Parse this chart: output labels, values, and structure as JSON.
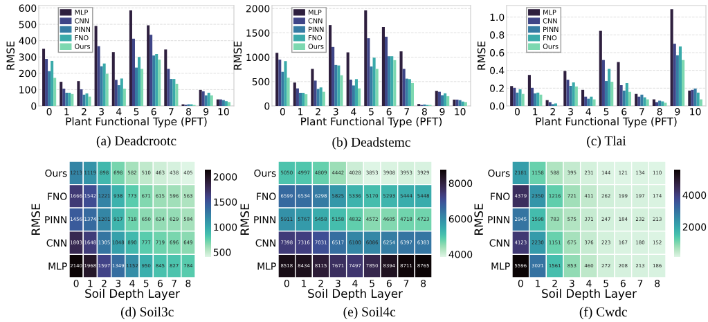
{
  "chart_data": [
    {
      "type": "bar",
      "title": "(a) Deadcrootc",
      "xlabel": "Plant Functional Type (PFT)",
      "ylabel": "RMSE",
      "categories": [
        "0",
        "1",
        "2",
        "3",
        "4",
        "5",
        "6",
        "7",
        "8",
        "9",
        "10"
      ],
      "ylim": [
        0,
        615
      ],
      "yticks": [
        0,
        100,
        200,
        300,
        400,
        500,
        600
      ],
      "grid": "y",
      "legend": "top left",
      "series": [
        {
          "name": "MLP",
          "color": "#2e1f3e",
          "values": [
            350,
            148,
            152,
            490,
            330,
            585,
            494,
            346,
            10,
            98,
            40
          ]
        },
        {
          "name": "CNN",
          "color": "#3f4587",
          "values": [
            288,
            106,
            102,
            366,
            160,
            412,
            436,
            227,
            7,
            90,
            40
          ]
        },
        {
          "name": "PINN",
          "color": "#367ba3",
          "values": [
            213,
            81,
            69,
            243,
            127,
            235,
            309,
            165,
            10,
            65,
            36
          ]
        },
        {
          "name": "FNO",
          "color": "#3aaaaa",
          "values": [
            276,
            81,
            77,
            260,
            168,
            300,
            318,
            165,
            10,
            81,
            29
          ]
        },
        {
          "name": "Ours",
          "color": "#7dd8b0",
          "values": [
            172,
            73,
            57,
            197,
            106,
            227,
            284,
            136,
            6,
            65,
            24
          ]
        }
      ]
    },
    {
      "type": "bar",
      "title": "(b) Deadstemc",
      "xlabel": "Plant Functional Type (PFT)",
      "ylabel": "RMSE",
      "categories": [
        "0",
        "1",
        "2",
        "3",
        "4",
        "5",
        "6",
        "7",
        "8",
        "9",
        "10"
      ],
      "ylim": [
        0,
        2060
      ],
      "yticks": [
        0,
        500,
        1000,
        1500,
        2000
      ],
      "grid": "y",
      "legend": "top left",
      "series": [
        {
          "name": "MLP",
          "color": "#2e1f3e",
          "values": [
            1090,
            480,
            760,
            1660,
            1100,
            1960,
            1620,
            1120,
            40,
            310,
            130
          ]
        },
        {
          "name": "CNN",
          "color": "#3f4587",
          "values": [
            950,
            360,
            520,
            1210,
            540,
            1390,
            1420,
            760,
            20,
            290,
            130
          ]
        },
        {
          "name": "PINN",
          "color": "#367ba3",
          "values": [
            700,
            270,
            350,
            840,
            420,
            810,
            1020,
            560,
            30,
            220,
            120
          ]
        },
        {
          "name": "FNO",
          "color": "#3aaaaa",
          "values": [
            920,
            270,
            380,
            830,
            550,
            990,
            1020,
            550,
            20,
            260,
            90
          ]
        },
        {
          "name": "Ours",
          "color": "#7dd8b0",
          "values": [
            580,
            240,
            290,
            630,
            360,
            760,
            940,
            470,
            20,
            200,
            80
          ]
        }
      ]
    },
    {
      "type": "bar",
      "title": "(c) Tlai",
      "xlabel": "Plant Functional Type (PFT)",
      "ylabel": "RMSE",
      "categories": [
        "0",
        "1",
        "2",
        "3",
        "4",
        "5",
        "6",
        "7",
        "8",
        "9",
        "10"
      ],
      "ylim": [
        0,
        1.13
      ],
      "yticks": [
        {
          "value": 0,
          "label": "0.0"
        },
        0.2,
        0.4,
        0.6,
        0.8,
        {
          "value": 1,
          "label": "1.0"
        }
      ],
      "grid": "y",
      "legend": "top left",
      "series": [
        {
          "name": "MLP",
          "color": "#2e1f3e",
          "values": [
            0.224,
            0.349,
            0.066,
            0.394,
            0.181,
            0.845,
            0.494,
            0.135,
            0.074,
            1.089,
            0.173
          ]
        },
        {
          "name": "CNN",
          "color": "#3f4587",
          "values": [
            0.204,
            0.204,
            0.043,
            0.295,
            0.104,
            0.517,
            0.234,
            0.104,
            0.043,
            0.7,
            0.181
          ]
        },
        {
          "name": "PINN",
          "color": "#367ba3",
          "values": [
            0.15,
            0.142,
            0.02,
            0.226,
            0.081,
            0.28,
            0.173,
            0.127,
            0.059,
            0.57,
            0.196
          ]
        },
        {
          "name": "FNO",
          "color": "#3aaaaa",
          "values": [
            0.188,
            0.15,
            0.028,
            0.265,
            0.104,
            0.417,
            0.257,
            0.097,
            0.051,
            0.669,
            0.15
          ]
        },
        {
          "name": "Ours",
          "color": "#7dd8b0",
          "values": [
            0.135,
            0.127,
            null,
            0.219,
            0.074,
            0.272,
            0.158,
            0.074,
            0.036,
            0.517,
            0.074
          ]
        }
      ]
    },
    {
      "type": "heatmap",
      "title": "(d) Soil3c",
      "xlabel": "Soil Depth Layer",
      "ylabel": "RMSE",
      "categories": [
        "0",
        "1",
        "2",
        "3",
        "4",
        "5",
        "6",
        "7",
        "8"
      ],
      "y_categories": [
        "Ours",
        "FNO",
        "PINN",
        "CNN",
        "MLP"
      ],
      "clim": [
        405,
        2140
      ],
      "cticks": [
        500,
        1000,
        1500,
        2000
      ],
      "data_labels": true,
      "cells": [
        [
          1213,
          1119,
          898,
          698,
          582,
          510,
          463,
          438,
          405
        ],
        [
          1666,
          1542,
          1221,
          938,
          773,
          671,
          615,
          596,
          563
        ],
        [
          1456,
          1374,
          1201,
          917,
          718,
          650,
          634,
          629,
          584
        ],
        [
          1803,
          1648,
          1305,
          1048,
          890,
          777,
          719,
          696,
          649
        ],
        [
          2140,
          1968,
          1597,
          1349,
          1152,
          950,
          845,
          827,
          784
        ]
      ]
    },
    {
      "type": "heatmap",
      "title": "(e) Soil4c",
      "xlabel": "Soil Depth Layer",
      "ylabel": "RMSE",
      "categories": [
        "0",
        "1",
        "2",
        "3",
        "4",
        "5",
        "6",
        "7",
        "8"
      ],
      "y_categories": [
        "Ours",
        "FNO",
        "PINN",
        "CNN",
        "MLP"
      ],
      "clim": [
        3853,
        8765
      ],
      "cticks": [
        4000,
        6000,
        8000
      ],
      "data_labels": true,
      "cells": [
        [
          5050,
          4997,
          4809,
          4442,
          4028,
          3853,
          3908,
          3953,
          3929
        ],
        [
          6599,
          6534,
          6298,
          5825,
          5336,
          5170,
          5293,
          5444,
          5448
        ],
        [
          5911,
          5767,
          5458,
          5158,
          4832,
          4572,
          4605,
          4718,
          4723
        ],
        [
          7398,
          7316,
          7031,
          6517,
          6100,
          6086,
          6254,
          6397,
          6383
        ],
        [
          8518,
          8434,
          8115,
          7671,
          7497,
          7850,
          8394,
          8711,
          8765
        ]
      ]
    },
    {
      "type": "heatmap",
      "title": "(f) Cwdc",
      "xlabel": "Soil Depth Layer",
      "ylabel": "RMSE",
      "categories": [
        "0",
        "1",
        "2",
        "3",
        "4",
        "5",
        "6",
        "7",
        "8"
      ],
      "y_categories": [
        "Ours",
        "FNO",
        "PINN",
        "CNN",
        "MLP"
      ],
      "clim": [
        110,
        5596
      ],
      "cticks": [
        2000,
        4000
      ],
      "data_labels": true,
      "cells": [
        [
          2181,
          1158,
          588,
          395,
          231,
          144,
          121,
          134,
          110
        ],
        [
          4379,
          2350,
          1216,
          721,
          411,
          262,
          199,
          197,
          174
        ],
        [
          2945,
          1598,
          783,
          575,
          371,
          247,
          184,
          232,
          213
        ],
        [
          4123,
          2230,
          1151,
          675,
          376,
          223,
          167,
          180,
          152
        ],
        [
          5596,
          3021,
          1561,
          853,
          460,
          272,
          208,
          213,
          186
        ]
      ]
    }
  ]
}
